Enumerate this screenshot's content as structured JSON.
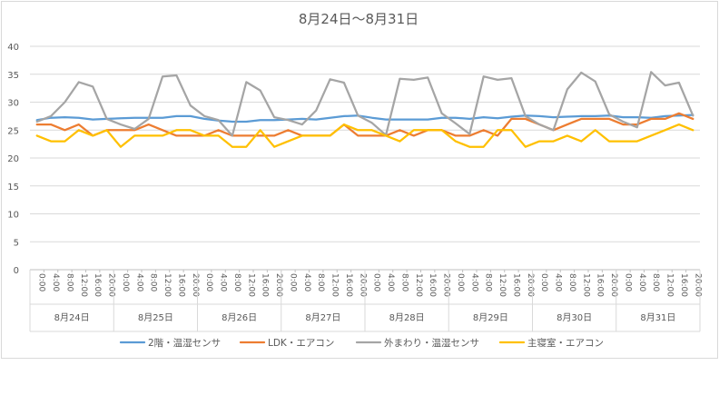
{
  "chart_data": {
    "type": "line",
    "title": "8月24日～8月31日",
    "ylim": [
      0,
      40
    ],
    "yticks": [
      0,
      5,
      10,
      15,
      20,
      25,
      30,
      35,
      40
    ],
    "grid": true,
    "legend_position": "bottom",
    "time_labels": [
      "0:00",
      "4:00",
      "8:00",
      "12:00",
      "16:00",
      "20:00"
    ],
    "days": [
      "8月24日",
      "8月25日",
      "8月26日",
      "8月27日",
      "8月28日",
      "8月29日",
      "8月30日",
      "8月31日"
    ],
    "series": [
      {
        "name": "2階・温湿センサ",
        "color": "#5B9BD5",
        "values": [
          26.8,
          27.2,
          27.3,
          27.2,
          26.9,
          27.0,
          27.1,
          27.2,
          27.2,
          27.2,
          27.5,
          27.5,
          27.0,
          26.7,
          26.5,
          26.5,
          26.8,
          26.8,
          26.9,
          27.0,
          26.9,
          27.2,
          27.5,
          27.6,
          27.2,
          26.9,
          26.9,
          26.9,
          26.9,
          27.2,
          27.2,
          27.0,
          27.3,
          27.1,
          27.4,
          27.6,
          27.5,
          27.3,
          27.4,
          27.5,
          27.5,
          27.6,
          27.3,
          27.3,
          27.2,
          27.5,
          27.6,
          27.7
        ]
      },
      {
        "name": "LDK・エアコン",
        "color": "#ED7D31",
        "values": [
          26,
          26,
          25,
          26,
          24,
          25,
          25,
          25,
          26,
          25,
          24,
          24,
          24,
          25,
          24,
          24,
          24,
          24,
          25,
          24,
          24,
          24,
          26,
          24,
          24,
          24,
          25,
          24,
          25,
          25,
          24,
          24,
          25,
          24,
          27,
          27,
          26,
          25,
          26,
          27,
          27,
          27,
          26,
          26,
          27,
          27,
          28,
          27
        ]
      },
      {
        "name": "外まわり・温湿センサ",
        "color": "#A5A5A5",
        "values": [
          26.5,
          27.5,
          30.0,
          33.6,
          32.8,
          27.0,
          26.0,
          25.2,
          27.0,
          34.6,
          34.8,
          29.4,
          27.5,
          26.8,
          24.0,
          33.6,
          32.1,
          27.3,
          26.8,
          26.0,
          28.5,
          34.1,
          33.5,
          27.6,
          26.3,
          24.1,
          34.2,
          34.0,
          34.4,
          28.0,
          26.2,
          24.3,
          34.6,
          34.0,
          34.3,
          27.5,
          26.0,
          25.0,
          32.3,
          35.3,
          33.7,
          27.8,
          26.5,
          25.5,
          35.4,
          33.0,
          33.5,
          27.6
        ]
      },
      {
        "name": "主寝室・エアコン",
        "color": "#FFC000",
        "values": [
          24,
          23,
          23,
          25,
          24,
          25,
          22,
          24,
          24,
          24,
          25,
          25,
          24,
          24,
          22,
          22,
          25,
          22,
          23,
          24,
          24,
          24,
          26,
          25,
          25,
          24,
          23,
          25,
          25,
          25,
          23,
          22,
          22,
          25,
          25,
          22,
          23,
          23,
          24,
          23,
          25,
          23,
          23,
          23,
          24,
          25,
          26,
          25
        ]
      }
    ]
  }
}
